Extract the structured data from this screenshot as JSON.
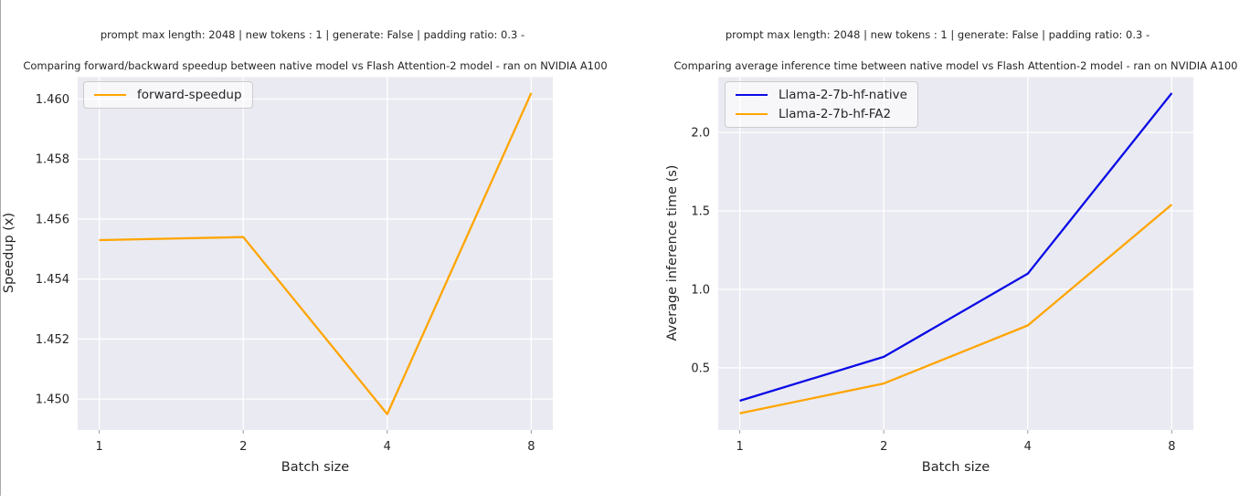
{
  "page": {
    "background": "#ffffff",
    "border_color": "#a9a9b0",
    "text_color": "#262626",
    "plot_background": "#eaeaf2",
    "grid_color": "#ffffff"
  },
  "chart_data": [
    {
      "type": "line",
      "suptitle": "prompt max length: 2048 | new tokens : 1 | generate: False | padding ratio: 0.3 -",
      "title": "Comparing forward/backward speedup between native model vs Flash Attention-2 model - ran on NVIDIA A100",
      "xlabel": "Batch size",
      "ylabel": "Speedup (x)",
      "x_tick_labels": [
        "1",
        "2",
        "4",
        "8"
      ],
      "y_tick_labels": [
        "1.450",
        "1.452",
        "1.454",
        "1.456",
        "1.458",
        "1.460"
      ],
      "yticks": [
        1.45,
        1.452,
        1.454,
        1.456,
        1.458,
        1.46
      ],
      "ylim": [
        1.44897,
        1.46073
      ],
      "grid": true,
      "legend_position": "upper left",
      "series": [
        {
          "name": "forward-speedup",
          "color": "#ffa500",
          "values": [
            1.4553,
            1.4554,
            1.4495,
            1.4602
          ]
        }
      ]
    },
    {
      "type": "line",
      "suptitle": "prompt max length: 2048 | new tokens : 1 | generate: False | padding ratio: 0.3 -",
      "title": "Comparing average inference time between native model vs Flash Attention-2 model - ran on NVIDIA A100",
      "xlabel": "Batch size",
      "ylabel": "Average inference time (s)",
      "x_tick_labels": [
        "1",
        "2",
        "4",
        "8"
      ],
      "y_tick_labels": [
        "0.5",
        "1.0",
        "1.5",
        "2.0"
      ],
      "yticks": [
        0.5,
        1.0,
        1.5,
        2.0
      ],
      "ylim": [
        0.104,
        2.352
      ],
      "grid": true,
      "legend_position": "upper left",
      "series": [
        {
          "name": "Llama-2-7b-hf-native",
          "color": "#0a0ae6",
          "values": [
            0.29,
            0.57,
            1.1,
            2.25
          ]
        },
        {
          "name": "Llama-2-7b-hf-FA2",
          "color": "#ffa500",
          "values": [
            0.21,
            0.4,
            0.77,
            1.54
          ]
        }
      ]
    }
  ]
}
